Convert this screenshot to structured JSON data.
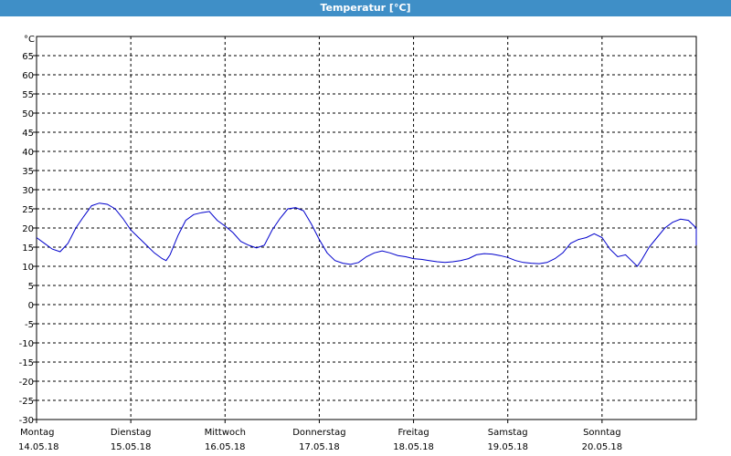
{
  "window": {
    "title": "Temperatur [°C]"
  },
  "chart_data": {
    "type": "line",
    "title": "Temperatur [°C]",
    "ylabel": "°C",
    "xlabel": "",
    "ylim": [
      -30,
      70
    ],
    "yticks": [
      -30,
      -25,
      -20,
      -15,
      -10,
      -5,
      0,
      5,
      10,
      15,
      20,
      25,
      30,
      35,
      40,
      45,
      50,
      55,
      60,
      65
    ],
    "xlim": [
      "14.05.18 00:00",
      "21.05.18 00:00"
    ],
    "grid": true,
    "x_ticks": [
      {
        "day": "Montag",
        "date": "14.05.18"
      },
      {
        "day": "Dienstag",
        "date": "15.05.18"
      },
      {
        "day": "Mittwoch",
        "date": "16.05.18"
      },
      {
        "day": "Donnerstag",
        "date": "17.05.18"
      },
      {
        "day": "Freitag",
        "date": "18.05.18"
      },
      {
        "day": "Samstag",
        "date": "19.05.18"
      },
      {
        "day": "Sonntag",
        "date": "20.05.18"
      }
    ],
    "colors": {
      "line": "#0000cc",
      "grid": "#000000",
      "axis": "#000000"
    },
    "series": [
      {
        "points": [
          [
            "14.05.18 00:00",
            17.5
          ],
          [
            "14.05.18 02:00",
            16.0
          ],
          [
            "14.05.18 04:00",
            14.5
          ],
          [
            "14.05.18 06:00",
            13.8
          ],
          [
            "14.05.18 08:00",
            16.0
          ],
          [
            "14.05.18 10:00",
            20.0
          ],
          [
            "14.05.18 12:00",
            23.0
          ],
          [
            "14.05.18 14:00",
            25.8
          ],
          [
            "14.05.18 16:00",
            26.5
          ],
          [
            "14.05.18 18:00",
            26.2
          ],
          [
            "14.05.18 20:00",
            25.0
          ],
          [
            "14.05.18 22:00",
            22.5
          ],
          [
            "15.05.18 00:00",
            19.5
          ],
          [
            "15.05.18 02:00",
            17.5
          ],
          [
            "15.05.18 04:00",
            15.5
          ],
          [
            "15.05.18 06:00",
            13.5
          ],
          [
            "15.05.18 08:00",
            12.0
          ],
          [
            "15.05.18 09:00",
            11.5
          ],
          [
            "15.05.18 10:00",
            13.0
          ],
          [
            "15.05.18 12:00",
            18.0
          ],
          [
            "15.05.18 14:00",
            22.0
          ],
          [
            "15.05.18 16:00",
            23.5
          ],
          [
            "15.05.18 18:00",
            24.0
          ],
          [
            "15.05.18 20:00",
            24.3
          ],
          [
            "15.05.18 22:00",
            22.0
          ],
          [
            "16.05.18 00:00",
            20.5
          ],
          [
            "16.05.18 02:00",
            18.8
          ],
          [
            "16.05.18 04:00",
            16.5
          ],
          [
            "16.05.18 06:00",
            15.5
          ],
          [
            "16.05.18 08:00",
            14.8
          ],
          [
            "16.05.18 10:00",
            15.5
          ],
          [
            "16.05.18 12:00",
            19.5
          ],
          [
            "16.05.18 14:00",
            22.5
          ],
          [
            "16.05.18 16:00",
            25.0
          ],
          [
            "16.05.18 18:00",
            25.3
          ],
          [
            "16.05.18 20:00",
            24.5
          ],
          [
            "16.05.18 22:00",
            21.0
          ],
          [
            "17.05.18 00:00",
            17.0
          ],
          [
            "17.05.18 02:00",
            13.5
          ],
          [
            "17.05.18 04:00",
            11.5
          ],
          [
            "17.05.18 06:00",
            10.8
          ],
          [
            "17.05.18 08:00",
            10.5
          ],
          [
            "17.05.18 10:00",
            11.0
          ],
          [
            "17.05.18 12:00",
            12.5
          ],
          [
            "17.05.18 14:00",
            13.5
          ],
          [
            "17.05.18 16:00",
            14.0
          ],
          [
            "17.05.18 18:00",
            13.5
          ],
          [
            "17.05.18 20:00",
            12.8
          ],
          [
            "17.05.18 22:00",
            12.5
          ],
          [
            "18.05.18 00:00",
            12.0
          ],
          [
            "18.05.18 02:00",
            11.8
          ],
          [
            "18.05.18 04:00",
            11.5
          ],
          [
            "18.05.18 06:00",
            11.2
          ],
          [
            "18.05.18 08:00",
            11.0
          ],
          [
            "18.05.18 10:00",
            11.2
          ],
          [
            "18.05.18 12:00",
            11.5
          ],
          [
            "18.05.18 14:00",
            12.0
          ],
          [
            "18.05.18 16:00",
            13.0
          ],
          [
            "18.05.18 18:00",
            13.3
          ],
          [
            "18.05.18 20:00",
            13.2
          ],
          [
            "18.05.18 22:00",
            12.8
          ],
          [
            "19.05.18 00:00",
            12.3
          ],
          [
            "19.05.18 02:00",
            11.5
          ],
          [
            "19.05.18 04:00",
            11.0
          ],
          [
            "19.05.18 06:00",
            10.8
          ],
          [
            "19.05.18 08:00",
            10.7
          ],
          [
            "19.05.18 10:00",
            11.0
          ],
          [
            "19.05.18 12:00",
            12.0
          ],
          [
            "19.05.18 14:00",
            13.5
          ],
          [
            "19.05.18 16:00",
            16.0
          ],
          [
            "19.05.18 18:00",
            17.0
          ],
          [
            "19.05.18 20:00",
            17.5
          ],
          [
            "19.05.18 22:00",
            18.5
          ],
          [
            "20.05.18 00:00",
            17.5
          ],
          [
            "20.05.18 02:00",
            14.5
          ],
          [
            "20.05.18 04:00",
            12.5
          ],
          [
            "20.05.18 06:00",
            13.0
          ],
          [
            "20.05.18 08:00",
            11.0
          ],
          [
            "20.05.18 09:00",
            10.0
          ],
          [
            "20.05.18 10:00",
            11.5
          ],
          [
            "20.05.18 12:00",
            15.0
          ],
          [
            "20.05.18 14:00",
            17.5
          ],
          [
            "20.05.18 16:00",
            20.0
          ],
          [
            "20.05.18 18:00",
            21.5
          ],
          [
            "20.05.18 20:00",
            22.3
          ],
          [
            "20.05.18 22:00",
            22.0
          ],
          [
            "21.05.18 00:00",
            20.0
          ],
          [
            "21.05.18 02:00",
            17.0
          ],
          [
            "21.05.18 03:00",
            15.5
          ]
        ]
      }
    ]
  }
}
